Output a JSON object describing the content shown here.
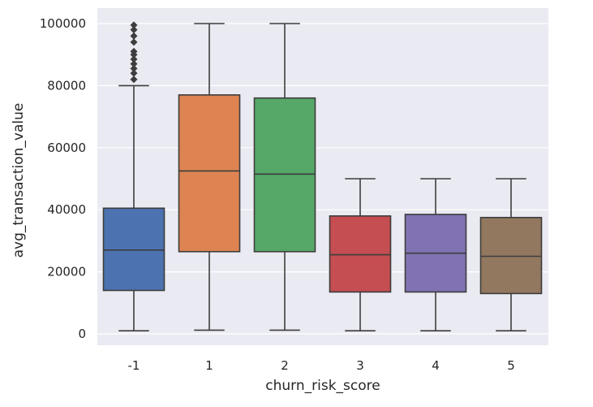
{
  "chart_data": {
    "type": "box",
    "xlabel": "churn_risk_score",
    "ylabel": "avg_transaction_value",
    "ylim": [
      -3000,
      105000
    ],
    "yticks": [
      0,
      20000,
      40000,
      60000,
      80000,
      100000
    ],
    "ytick_labels": [
      "0",
      "20000",
      "40000",
      "60000",
      "80000",
      "100000"
    ],
    "grid": true,
    "background": "#eaeaf2",
    "categories": [
      "-1",
      "1",
      "2",
      "3",
      "4",
      "5"
    ],
    "boxes": [
      {
        "category": "-1",
        "color": "#4c72b0",
        "whisker_low": 1000,
        "q1": 14000,
        "median": 27000,
        "q3": 40500,
        "whisker_high": 80000,
        "outliers": [
          82000,
          84000,
          85500,
          87000,
          88500,
          90000,
          91000,
          94000,
          96000,
          98000,
          99500
        ]
      },
      {
        "category": "1",
        "color": "#dd8452",
        "whisker_low": 1200,
        "q1": 26500,
        "median": 52500,
        "q3": 77000,
        "whisker_high": 100000,
        "outliers": []
      },
      {
        "category": "2",
        "color": "#55a868",
        "whisker_low": 1200,
        "q1": 26500,
        "median": 51500,
        "q3": 76000,
        "whisker_high": 100000,
        "outliers": []
      },
      {
        "category": "3",
        "color": "#c44e52",
        "whisker_low": 1000,
        "q1": 13500,
        "median": 25500,
        "q3": 38000,
        "whisker_high": 50000,
        "outliers": []
      },
      {
        "category": "4",
        "color": "#8172b3",
        "whisker_low": 1000,
        "q1": 13500,
        "median": 26000,
        "q3": 38500,
        "whisker_high": 50000,
        "outliers": []
      },
      {
        "category": "5",
        "color": "#937860",
        "whisker_low": 1000,
        "q1": 13000,
        "median": 25000,
        "q3": 37500,
        "whisker_high": 50000,
        "outliers": []
      }
    ]
  }
}
